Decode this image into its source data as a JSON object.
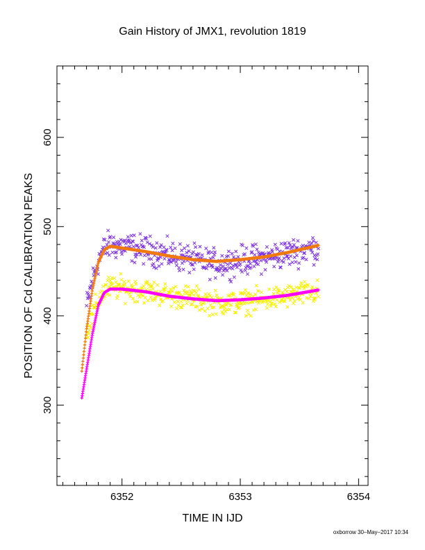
{
  "chart_data": {
    "type": "scatter",
    "title": "Gain History of JMX1, revolution 1819",
    "xlabel": "TIME IN IJD",
    "ylabel": "POSITION OF Cd CALIBRATION PEAKS",
    "xlim": [
      6351.45,
      6354.08
    ],
    "ylim": [
      210,
      680
    ],
    "x_ticks": [
      "6352",
      "6353",
      "6354"
    ],
    "y_ticks": [
      "300",
      "400",
      "500",
      "600"
    ],
    "grid": false,
    "legend": "none",
    "series": [
      {
        "marker": "x",
        "color": "#7b2fe0",
        "x_range": [
          6351.7,
          6353.66
        ],
        "points": [
          [
            6351.7,
            410
          ],
          [
            6351.75,
            440
          ],
          [
            6351.8,
            462
          ],
          [
            6351.85,
            475
          ],
          [
            6351.9,
            480
          ],
          [
            6352.0,
            478
          ],
          [
            6352.2,
            474
          ],
          [
            6352.4,
            468
          ],
          [
            6352.6,
            463
          ],
          [
            6352.8,
            458
          ],
          [
            6353.0,
            462
          ],
          [
            6353.2,
            465
          ],
          [
            6353.4,
            470
          ],
          [
            6353.6,
            476
          ]
        ],
        "scatter": 12
      },
      {
        "marker": "x",
        "color": "#f5f000",
        "x_range": [
          6351.7,
          6353.66
        ],
        "points": [
          [
            6351.7,
            380
          ],
          [
            6351.75,
            400
          ],
          [
            6351.8,
            418
          ],
          [
            6351.85,
            428
          ],
          [
            6351.9,
            432
          ],
          [
            6352.0,
            431
          ],
          [
            6352.2,
            428
          ],
          [
            6352.4,
            423
          ],
          [
            6352.6,
            420
          ],
          [
            6352.8,
            414
          ],
          [
            6353.0,
            415
          ],
          [
            6353.2,
            418
          ],
          [
            6353.4,
            422
          ],
          [
            6353.6,
            426
          ]
        ],
        "scatter": 10
      },
      {
        "marker": "+",
        "color": "#f07a10",
        "x_range": [
          6351.66,
          6353.66
        ],
        "points": [
          [
            6351.66,
            338
          ],
          [
            6351.7,
            385
          ],
          [
            6351.75,
            430
          ],
          [
            6351.8,
            460
          ],
          [
            6351.85,
            474
          ],
          [
            6351.9,
            478
          ],
          [
            6352.0,
            476
          ],
          [
            6352.2,
            472
          ],
          [
            6352.4,
            467
          ],
          [
            6352.6,
            463
          ],
          [
            6352.8,
            461
          ],
          [
            6353.0,
            463
          ],
          [
            6353.2,
            466
          ],
          [
            6353.4,
            471
          ],
          [
            6353.66,
            479
          ]
        ],
        "scatter": 0
      },
      {
        "marker": "+",
        "color": "#ff00ff",
        "x_range": [
          6351.66,
          6353.66
        ],
        "points": [
          [
            6351.66,
            308
          ],
          [
            6351.7,
            340
          ],
          [
            6351.75,
            380
          ],
          [
            6351.8,
            412
          ],
          [
            6351.85,
            426
          ],
          [
            6351.9,
            430
          ],
          [
            6352.0,
            430
          ],
          [
            6352.2,
            427
          ],
          [
            6352.4,
            422
          ],
          [
            6352.6,
            419
          ],
          [
            6352.8,
            417
          ],
          [
            6353.0,
            418
          ],
          [
            6353.2,
            420
          ],
          [
            6353.4,
            423
          ],
          [
            6353.66,
            429
          ]
        ],
        "scatter": 0
      }
    ],
    "footer": "oxborrow 30–May–2017 10:34"
  }
}
